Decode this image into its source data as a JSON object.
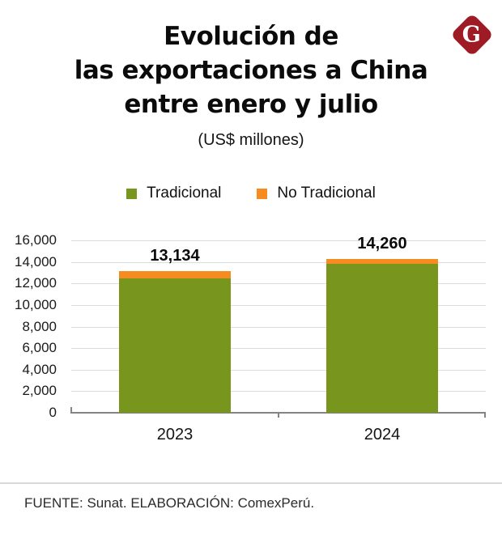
{
  "header": {
    "title_lines": [
      "Evolución de",
      "las exportaciones a China",
      "entre enero y julio"
    ],
    "subtitle": "(US$ millones)",
    "logo_letter": "G",
    "logo_color": "#9E1B26"
  },
  "legend": {
    "items": [
      {
        "label": "Tradicional",
        "color": "#78961E"
      },
      {
        "label": "No Tradicional",
        "color": "#F68B1F"
      }
    ]
  },
  "chart_data": {
    "type": "bar",
    "stacked": true,
    "title": "Evolución de las exportaciones a China entre enero y julio",
    "subtitle": "(US$ millones)",
    "categories": [
      "2023",
      "2024"
    ],
    "series": [
      {
        "name": "Tradicional",
        "color": "#78961E",
        "values": [
          12500,
          13850
        ]
      },
      {
        "name": "No Tradicional",
        "color": "#F68B1F",
        "values": [
          634,
          410
        ]
      }
    ],
    "totals": [
      13134,
      14260
    ],
    "total_labels": [
      "13,134",
      "14,260"
    ],
    "ylim": [
      0,
      16000
    ],
    "y_tick_labels": [
      "16,000",
      "14,000",
      "12,000",
      "10,000",
      "8,000",
      "6,000",
      "4,000",
      "2,000",
      "0"
    ],
    "grid": true,
    "legend_position": "top",
    "xlabel": "",
    "ylabel": ""
  },
  "footer": {
    "source": "FUENTE: Sunat. ELABORACIÓN: ComexPerú."
  }
}
